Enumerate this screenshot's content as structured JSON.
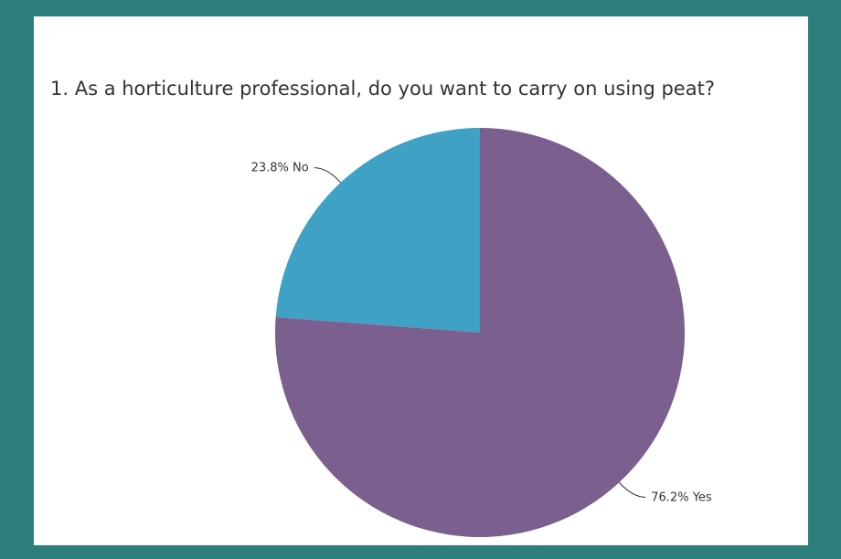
{
  "chart_data": {
    "type": "pie",
    "title": "1. As a horticulture professional, do you want to carry on using peat?",
    "categories": [
      "Yes",
      "No"
    ],
    "values": [
      76.2,
      23.8
    ],
    "value_labels": [
      "76.2%",
      "23.8%"
    ],
    "colors": [
      "#7b5f8e",
      "#3fa1c3"
    ]
  }
}
